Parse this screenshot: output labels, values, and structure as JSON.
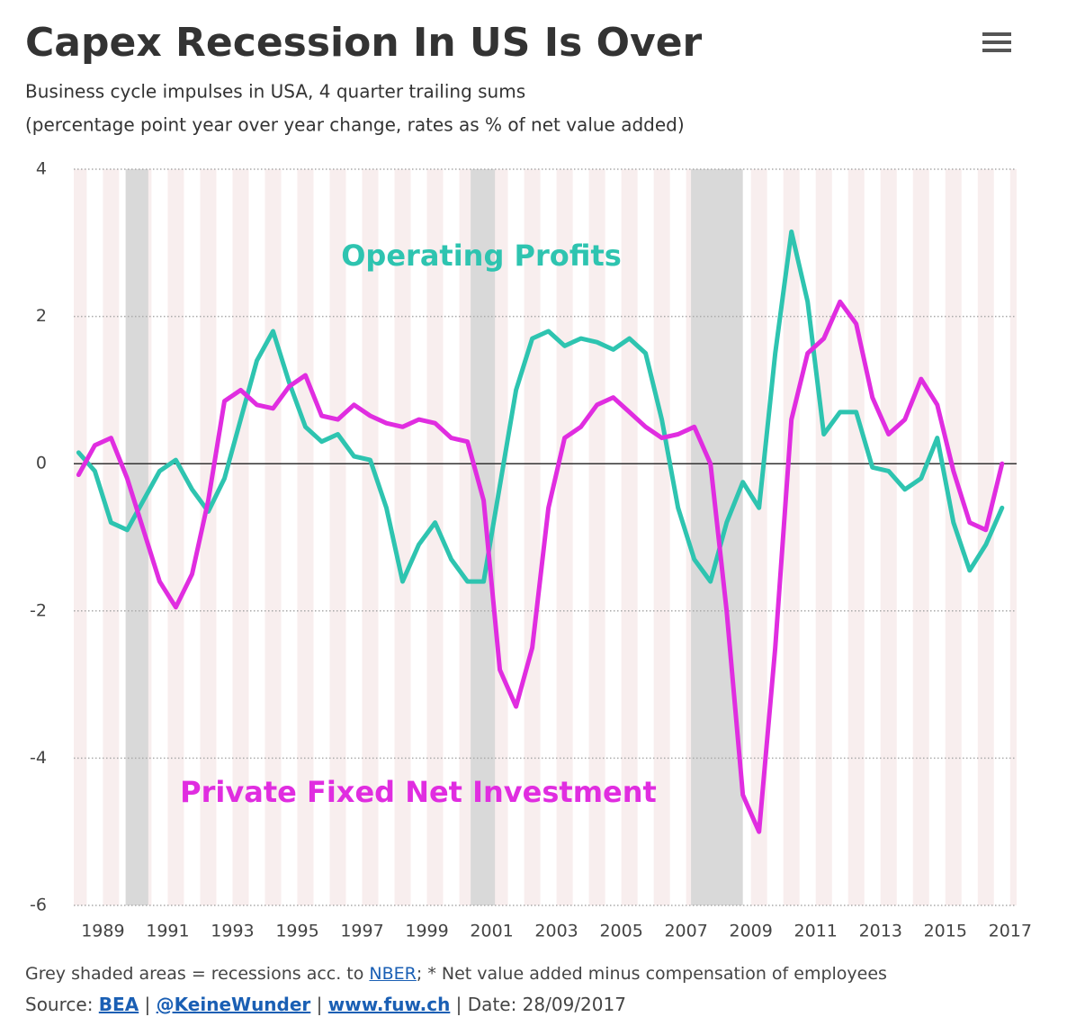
{
  "chart_data": {
    "type": "line",
    "title": "Capex Recession In US Is Over",
    "subtitle": [
      "Business cycle impulses in USA, 4 quarter trailing sums",
      "(percentage point year over year change, rates as % of net value added)"
    ],
    "xlim": [
      1988.1,
      2017.2
    ],
    "xticks": [
      1989,
      1991,
      1993,
      1995,
      1997,
      1999,
      2001,
      2003,
      2005,
      2007,
      2009,
      2011,
      2013,
      2015,
      2017
    ],
    "ylim": [
      -6,
      4
    ],
    "yticks": [
      -6,
      -4,
      -2,
      0,
      2,
      4
    ],
    "grid": true,
    "recessions": [
      [
        1989.7,
        1990.4
      ],
      [
        2000.35,
        2001.1
      ],
      [
        2007.15,
        2008.75
      ]
    ],
    "x": [
      1988.25,
      1988.75,
      1989.25,
      1989.75,
      1990.25,
      1990.75,
      1991.25,
      1991.75,
      1992.25,
      1992.75,
      1993.25,
      1993.75,
      1994.25,
      1994.75,
      1995.25,
      1995.75,
      1996.25,
      1996.75,
      1997.25,
      1997.75,
      1998.25,
      1998.75,
      1999.25,
      1999.75,
      2000.25,
      2000.75,
      2001.25,
      2001.75,
      2002.25,
      2002.75,
      2003.25,
      2003.75,
      2004.25,
      2004.75,
      2005.25,
      2005.75,
      2006.25,
      2006.75,
      2007.25,
      2007.75,
      2008.25,
      2008.75,
      2009.25,
      2009.75,
      2010.25,
      2010.75,
      2011.25,
      2011.75,
      2012.25,
      2012.75,
      2013.25,
      2013.75,
      2014.25,
      2014.75,
      2015.25,
      2015.75,
      2016.25,
      2016.75
    ],
    "series": [
      {
        "name": "Operating Profits",
        "color": "#2ec4b0",
        "values": [
          0.15,
          -0.1,
          -0.8,
          -0.9,
          -0.5,
          -0.1,
          0.05,
          -0.35,
          -0.65,
          -0.2,
          0.6,
          1.4,
          1.8,
          1.1,
          0.5,
          0.3,
          0.4,
          0.1,
          0.05,
          -0.6,
          -1.6,
          -1.1,
          -0.8,
          -1.3,
          -1.6,
          -1.6,
          -0.3,
          1.0,
          1.7,
          1.8,
          1.6,
          1.7,
          1.65,
          1.55,
          1.7,
          1.5,
          0.6,
          -0.6,
          -1.3,
          -1.6,
          -0.8,
          -0.25,
          -0.6,
          1.5,
          3.15,
          2.2,
          0.4,
          0.7,
          0.7,
          -0.05,
          -0.1,
          -0.35,
          -0.2,
          0.35,
          -0.8,
          -1.45,
          -1.1,
          -0.6
        ]
      },
      {
        "name": "Private Fixed Net Investment",
        "color": "#e02de0",
        "values": [
          -0.15,
          0.25,
          0.35,
          -0.2,
          -0.9,
          -1.6,
          -1.95,
          -1.5,
          -0.5,
          0.85,
          1.0,
          0.8,
          0.75,
          1.05,
          1.2,
          0.65,
          0.6,
          0.8,
          0.65,
          0.55,
          0.5,
          0.6,
          0.55,
          0.35,
          0.3,
          -0.5,
          -2.8,
          -3.3,
          -2.5,
          -0.6,
          0.35,
          0.5,
          0.8,
          0.9,
          0.7,
          0.5,
          0.35,
          0.4,
          0.5,
          0.0,
          -2.0,
          -4.5,
          -5.0,
          -2.5,
          0.6,
          1.5,
          1.7,
          2.2,
          1.9,
          0.9,
          0.4,
          0.6,
          1.15,
          0.8,
          -0.1,
          -0.8,
          -0.9,
          0.0
        ]
      }
    ],
    "notes": {
      "line1": [
        "Grey shaded areas = recessions acc. to ",
        "NBER",
        "; * Net value added minus compensation of employees"
      ],
      "line2": [
        "Source: ",
        "BEA",
        " | ",
        "@KeineWunder",
        " | ",
        "www.fuw.ch",
        " | Date: 28/09/2017"
      ]
    }
  }
}
